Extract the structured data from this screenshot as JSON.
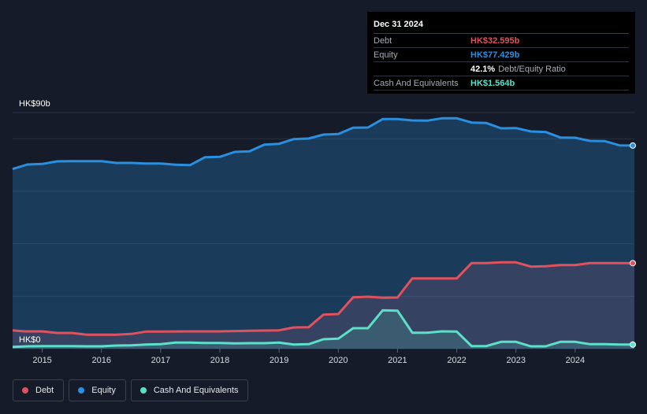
{
  "chart_data": {
    "type": "area",
    "y_axis": {
      "top_label": "HK$90b",
      "bottom_label": "HK$0",
      "ylim": [
        0,
        90
      ]
    },
    "x_ticks": [
      "2015",
      "2016",
      "2017",
      "2018",
      "2019",
      "2020",
      "2021",
      "2022",
      "2023",
      "2024"
    ],
    "xlim": [
      2014.5,
      2025.0
    ],
    "series": [
      {
        "name": "Debt",
        "color": "#e0525d",
        "points": [
          [
            2014.5,
            7.0
          ],
          [
            2014.7,
            6.6
          ],
          [
            2015.0,
            6.6
          ],
          [
            2015.25,
            6.0
          ],
          [
            2015.5,
            6.0
          ],
          [
            2015.75,
            5.3
          ],
          [
            2016.0,
            5.3
          ],
          [
            2016.25,
            5.3
          ],
          [
            2016.5,
            5.6
          ],
          [
            2016.75,
            6.5
          ],
          [
            2017.0,
            6.5
          ],
          [
            2017.5,
            6.6
          ],
          [
            2018.0,
            6.6
          ],
          [
            2018.5,
            6.8
          ],
          [
            2019.0,
            7.0
          ],
          [
            2019.25,
            8.1
          ],
          [
            2019.5,
            8.2
          ],
          [
            2019.75,
            13.0
          ],
          [
            2020.0,
            13.2
          ],
          [
            2020.25,
            19.6
          ],
          [
            2020.5,
            19.8
          ],
          [
            2020.75,
            19.4
          ],
          [
            2021.0,
            19.5
          ],
          [
            2021.25,
            26.8
          ],
          [
            2021.5,
            26.8
          ],
          [
            2021.75,
            26.8
          ],
          [
            2022.0,
            26.8
          ],
          [
            2022.25,
            32.6
          ],
          [
            2022.5,
            32.6
          ],
          [
            2022.75,
            32.9
          ],
          [
            2023.0,
            32.9
          ],
          [
            2023.25,
            31.3
          ],
          [
            2023.5,
            31.4
          ],
          [
            2023.75,
            31.9
          ],
          [
            2024.0,
            31.9
          ],
          [
            2024.25,
            32.6
          ],
          [
            2024.5,
            32.6
          ],
          [
            2024.75,
            32.6
          ],
          [
            2025.0,
            32.595
          ]
        ]
      },
      {
        "name": "Equity",
        "color": "#2b8fe0",
        "points": [
          [
            2014.5,
            68.5
          ],
          [
            2014.75,
            70.2
          ],
          [
            2015.0,
            70.4
          ],
          [
            2015.25,
            71.4
          ],
          [
            2015.5,
            71.5
          ],
          [
            2015.75,
            71.5
          ],
          [
            2016.0,
            71.5
          ],
          [
            2016.25,
            70.8
          ],
          [
            2016.5,
            70.8
          ],
          [
            2016.75,
            70.6
          ],
          [
            2017.0,
            70.6
          ],
          [
            2017.25,
            70.1
          ],
          [
            2017.5,
            70.0
          ],
          [
            2017.75,
            73.0
          ],
          [
            2018.0,
            73.1
          ],
          [
            2018.25,
            75.0
          ],
          [
            2018.5,
            75.2
          ],
          [
            2018.75,
            77.8
          ],
          [
            2019.0,
            78.1
          ],
          [
            2019.25,
            79.9
          ],
          [
            2019.5,
            80.1
          ],
          [
            2019.75,
            81.6
          ],
          [
            2020.0,
            81.8
          ],
          [
            2020.25,
            84.2
          ],
          [
            2020.5,
            84.3
          ],
          [
            2020.75,
            87.5
          ],
          [
            2021.0,
            87.5
          ],
          [
            2021.25,
            87.0
          ],
          [
            2021.5,
            86.9
          ],
          [
            2021.75,
            87.8
          ],
          [
            2022.0,
            87.8
          ],
          [
            2022.25,
            86.2
          ],
          [
            2022.5,
            86.0
          ],
          [
            2022.75,
            84.0
          ],
          [
            2023.0,
            84.1
          ],
          [
            2023.25,
            82.8
          ],
          [
            2023.5,
            82.6
          ],
          [
            2023.75,
            80.5
          ],
          [
            2024.0,
            80.4
          ],
          [
            2024.25,
            79.2
          ],
          [
            2024.5,
            79.1
          ],
          [
            2024.75,
            77.5
          ],
          [
            2025.0,
            77.429
          ]
        ]
      },
      {
        "name": "Cash And Equivalents",
        "color": "#5de0c8",
        "points": [
          [
            2014.5,
            0.7
          ],
          [
            2014.75,
            0.9
          ],
          [
            2015.0,
            1.0
          ],
          [
            2015.5,
            1.0
          ],
          [
            2015.75,
            0.9
          ],
          [
            2016.0,
            0.9
          ],
          [
            2016.25,
            1.2
          ],
          [
            2016.5,
            1.3
          ],
          [
            2016.75,
            1.6
          ],
          [
            2017.0,
            1.7
          ],
          [
            2017.25,
            2.3
          ],
          [
            2017.5,
            2.3
          ],
          [
            2017.75,
            2.2
          ],
          [
            2018.0,
            2.2
          ],
          [
            2018.25,
            2.0
          ],
          [
            2018.5,
            2.1
          ],
          [
            2018.75,
            2.1
          ],
          [
            2019.0,
            2.3
          ],
          [
            2019.25,
            1.6
          ],
          [
            2019.5,
            1.7
          ],
          [
            2019.75,
            3.6
          ],
          [
            2020.0,
            3.8
          ],
          [
            2020.25,
            7.8
          ],
          [
            2020.5,
            7.8
          ],
          [
            2020.75,
            14.6
          ],
          [
            2021.0,
            14.5
          ],
          [
            2021.25,
            6.1
          ],
          [
            2021.5,
            6.1
          ],
          [
            2021.75,
            6.6
          ],
          [
            2022.0,
            6.5
          ],
          [
            2022.25,
            1.0
          ],
          [
            2022.5,
            1.0
          ],
          [
            2022.75,
            2.6
          ],
          [
            2023.0,
            2.6
          ],
          [
            2023.25,
            0.9
          ],
          [
            2023.5,
            0.9
          ],
          [
            2023.75,
            2.6
          ],
          [
            2024.0,
            2.6
          ],
          [
            2024.25,
            1.7
          ],
          [
            2024.5,
            1.7
          ],
          [
            2024.75,
            1.6
          ],
          [
            2025.0,
            1.564
          ]
        ]
      }
    ],
    "grid": true,
    "legend_position": "bottom-left"
  },
  "tooltip": {
    "date": "Dec 31 2024",
    "rows": [
      {
        "label": "Debt",
        "value": "HK$32.595b",
        "color": "#e0525d",
        "suffix": ""
      },
      {
        "label": "Equity",
        "value": "HK$77.429b",
        "color": "#2b8fe0",
        "suffix": ""
      },
      {
        "label": "",
        "value": "42.1%",
        "color": "#ffffff",
        "suffix": "Debt/Equity Ratio"
      },
      {
        "label": "Cash And Equivalents",
        "value": "HK$1.564b",
        "color": "#5de0c8",
        "suffix": ""
      }
    ]
  },
  "legend": [
    {
      "label": "Debt",
      "color": "#e0525d"
    },
    {
      "label": "Equity",
      "color": "#2b8fe0"
    },
    {
      "label": "Cash And Equivalents",
      "color": "#5de0c8"
    }
  ]
}
